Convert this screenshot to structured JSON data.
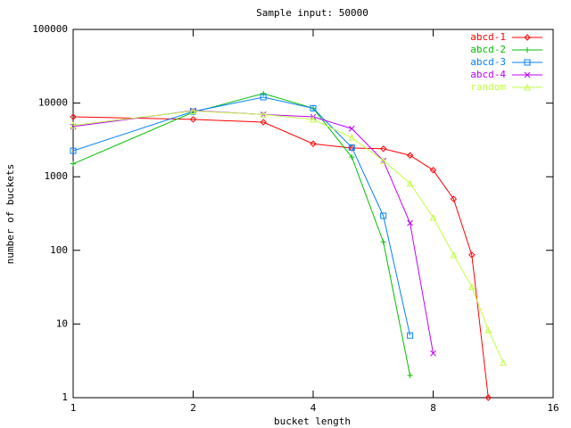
{
  "chart_data": {
    "type": "line",
    "title": "Sample input: 50000",
    "x_label": "bucket length",
    "y_label": "number of buckets",
    "x_log_base": 2,
    "y_log_base": 10,
    "xlim": [
      1,
      16
    ],
    "xticks": [
      1,
      2,
      4,
      8,
      16
    ],
    "ylim": [
      1,
      100000
    ],
    "yticks": [
      1,
      10,
      100,
      1000,
      10000,
      100000
    ],
    "legend": "top-right",
    "series": [
      {
        "name": "abcd-1",
        "color": "#ff0000",
        "x": [
          1,
          2,
          3,
          4,
          5,
          6,
          7,
          8,
          9,
          10,
          11
        ],
        "values": [
          6500,
          6000,
          5500,
          2800,
          2450,
          2400,
          1950,
          1230,
          500,
          87,
          1
        ]
      },
      {
        "name": "abcd-2",
        "color": "#00c000",
        "x": [
          1,
          2,
          3,
          4,
          5,
          6,
          7
        ],
        "values": [
          1500,
          7500,
          13500,
          8500,
          1850,
          130,
          2
        ]
      },
      {
        "name": "abcd-3",
        "color": "#0080ff",
        "x": [
          1,
          2,
          3,
          4,
          5,
          6,
          7
        ],
        "values": [
          2250,
          7700,
          12000,
          8500,
          2500,
          295,
          7
        ]
      },
      {
        "name": "abcd-4",
        "color": "#c000ff",
        "x": [
          1,
          2,
          3,
          4,
          5,
          6,
          7,
          8
        ],
        "values": [
          4800,
          7900,
          7000,
          6500,
          4500,
          1650,
          235,
          4
        ]
      },
      {
        "name": "random",
        "color": "#c0ff40",
        "x": [
          1,
          2,
          3,
          4,
          5,
          6,
          7,
          8,
          9,
          10,
          11,
          12
        ],
        "values": [
          5000,
          7800,
          7000,
          6000,
          3400,
          1650,
          810,
          280,
          87,
          32,
          8.3,
          3
        ]
      }
    ]
  }
}
